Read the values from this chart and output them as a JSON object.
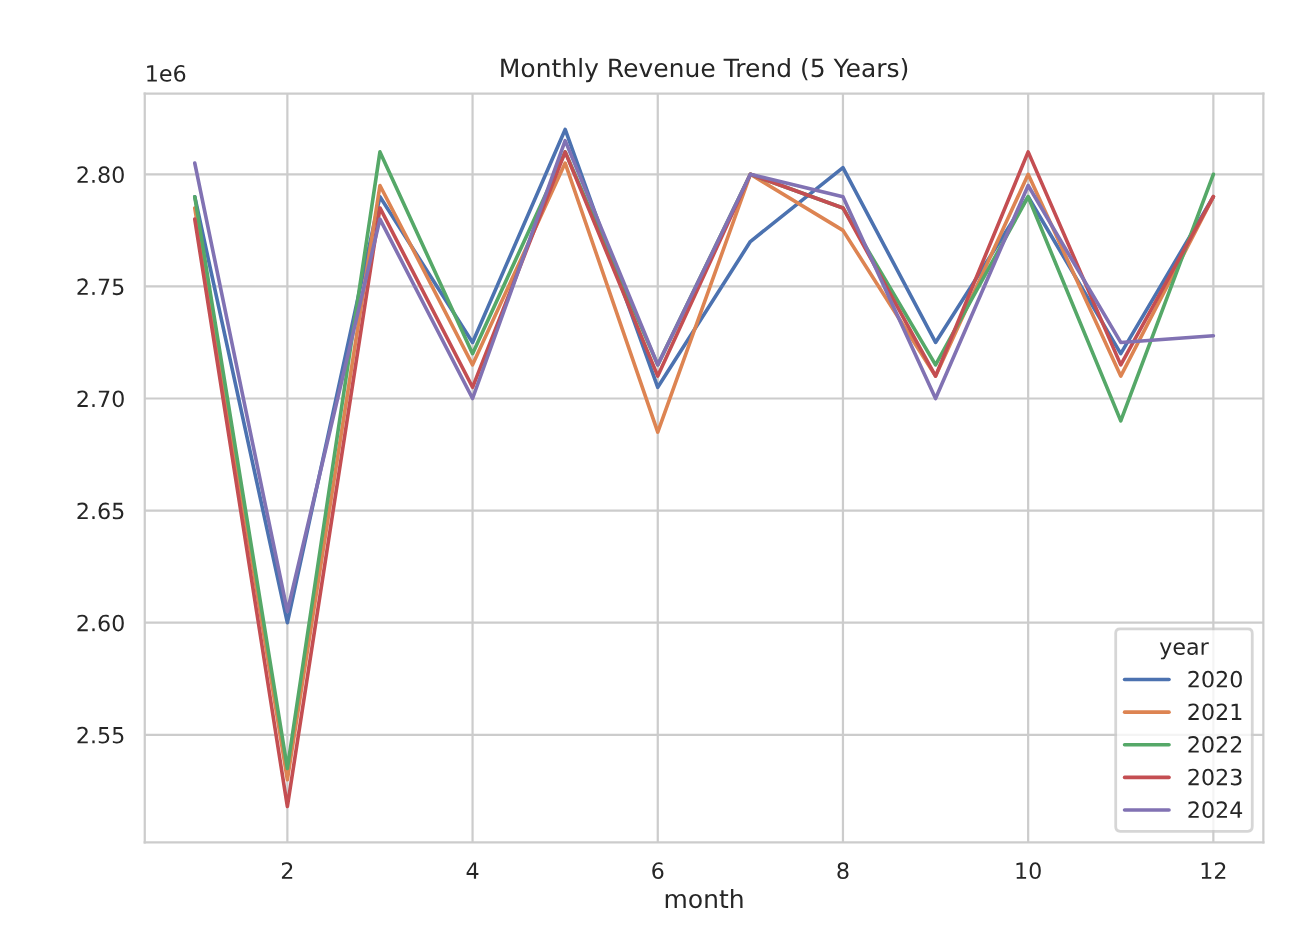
{
  "chart_data": {
    "type": "line",
    "title": "Monthly Revenue Trend (5 Years)",
    "xlabel": "month",
    "legend_title": "year",
    "legend": "bottom right",
    "grid": true,
    "annotations": [
      "1e6"
    ],
    "x": [
      1,
      2,
      3,
      4,
      5,
      6,
      7,
      8,
      9,
      10,
      11,
      12
    ],
    "xlim": [
      0.46,
      12.54
    ],
    "xticks": [
      2,
      4,
      6,
      8,
      10,
      12
    ],
    "ylim": [
      2.502,
      2.836
    ],
    "yticks": [
      {
        "value": 2.55,
        "label": "2.55"
      },
      {
        "value": 2.6,
        "label": "2.60"
      },
      {
        "value": 2.65,
        "label": "2.65"
      },
      {
        "value": 2.7,
        "label": "2.70"
      },
      {
        "value": 2.75,
        "label": "2.75"
      },
      {
        "value": 2.8,
        "label": "2.80"
      }
    ],
    "series": [
      {
        "name": "2020",
        "color": "#4c72b0",
        "values": [
          2.79,
          2.6,
          2.79,
          2.725,
          2.82,
          2.705,
          2.77,
          2.803,
          2.725,
          2.79,
          2.72,
          2.79
        ]
      },
      {
        "name": "2021",
        "color": "#dd8452",
        "values": [
          2.785,
          2.53,
          2.795,
          2.715,
          2.805,
          2.685,
          2.8,
          2.775,
          2.71,
          2.8,
          2.71,
          2.79
        ]
      },
      {
        "name": "2022",
        "color": "#55a868",
        "values": [
          2.79,
          2.535,
          2.81,
          2.72,
          2.81,
          2.715,
          2.8,
          2.785,
          2.715,
          2.79,
          2.69,
          2.8
        ]
      },
      {
        "name": "2023",
        "color": "#c44e52",
        "values": [
          2.78,
          2.518,
          2.785,
          2.705,
          2.81,
          2.71,
          2.8,
          2.785,
          2.71,
          2.81,
          2.715,
          2.79
        ]
      },
      {
        "name": "2024",
        "color": "#8172b3",
        "values": [
          2.805,
          2.605,
          2.78,
          2.7,
          2.815,
          2.715,
          2.8,
          2.79,
          2.7,
          2.795,
          2.725,
          2.728
        ]
      }
    ]
  }
}
